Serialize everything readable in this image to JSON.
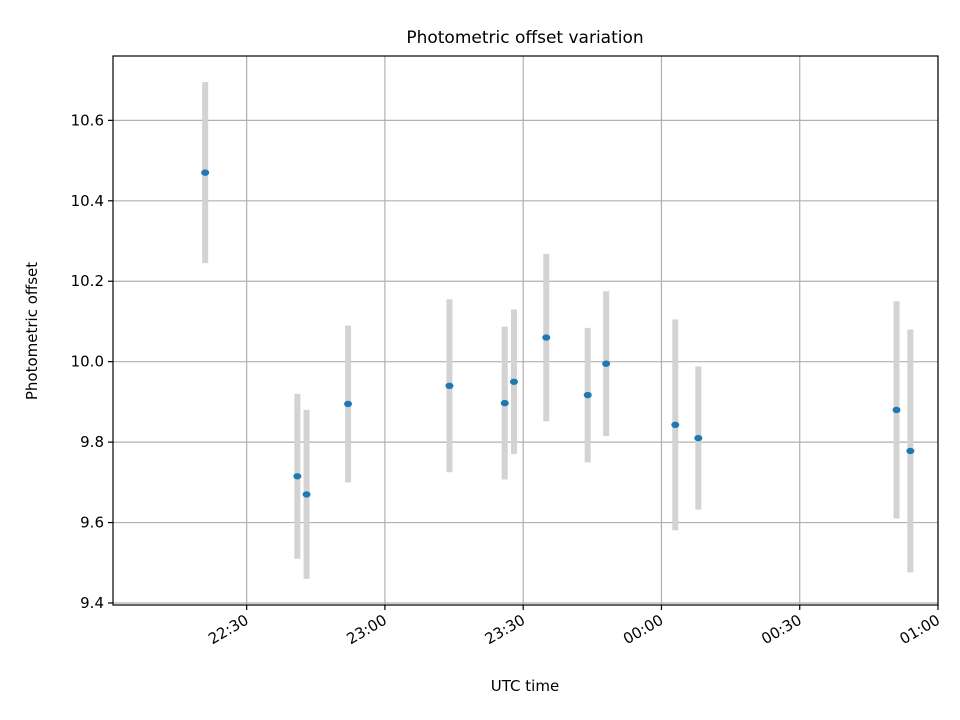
{
  "chart_data": {
    "type": "scatter",
    "title": "Photometric offset variation",
    "xlabel": "UTC time",
    "ylabel": "Photometric offset",
    "x_ticks": [
      "22:30",
      "23:00",
      "23:30",
      "00:00",
      "00:30",
      "01:00"
    ],
    "y_ticks": [
      "9.4",
      "9.6",
      "9.8",
      "10.0",
      "10.2",
      "10.4",
      "10.6"
    ],
    "xlim": [
      "22:01",
      "01:00"
    ],
    "ylim": [
      9.395,
      10.76
    ],
    "grid": true,
    "colors": {
      "point": "#1f77b4",
      "errorbar": "#d3d3d3",
      "grid": "#b0b0b0"
    },
    "points": [
      {
        "x": "22:21",
        "y": 10.47,
        "yerr": 0.225
      },
      {
        "x": "22:41",
        "y": 9.715,
        "yerr": 0.205
      },
      {
        "x": "22:43",
        "y": 9.67,
        "yerr": 0.21
      },
      {
        "x": "22:52",
        "y": 9.895,
        "yerr": 0.195
      },
      {
        "x": "23:14",
        "y": 9.94,
        "yerr": 0.215
      },
      {
        "x": "23:26",
        "y": 9.897,
        "yerr": 0.19
      },
      {
        "x": "23:28",
        "y": 9.95,
        "yerr": 0.18
      },
      {
        "x": "23:35",
        "y": 10.06,
        "yerr": 0.208
      },
      {
        "x": "23:44",
        "y": 9.917,
        "yerr": 0.167
      },
      {
        "x": "23:48",
        "y": 9.995,
        "yerr": 0.18
      },
      {
        "x": "00:03",
        "y": 9.843,
        "yerr": 0.262
      },
      {
        "x": "00:08",
        "y": 9.81,
        "yerr": 0.178
      },
      {
        "x": "00:51",
        "y": 9.88,
        "yerr": 0.27
      },
      {
        "x": "00:54",
        "y": 9.778,
        "yerr": 0.302
      }
    ]
  }
}
